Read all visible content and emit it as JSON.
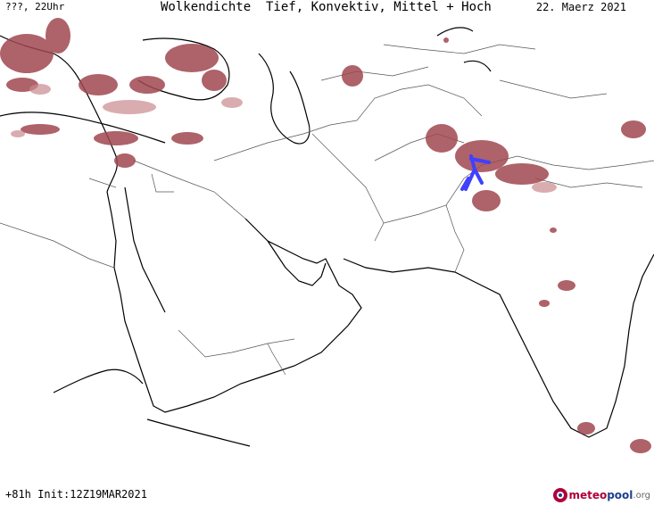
{
  "header": {
    "time_label": "???, 22Uhr",
    "title": "Wolkendichte  Tief, Konvektiv, Mittel + Hoch",
    "date": "22. Maerz 2021"
  },
  "footer": {
    "run_info": "+81h Init:12Z19MAR2021",
    "logo_part1": "meteo",
    "logo_part2": "pool",
    "logo_part3": ".org"
  },
  "colors": {
    "cloud": "#a0474f",
    "cloud_light": "#c98a8f",
    "convective": "#4040ff",
    "coast": "#000000",
    "border": "#555555"
  }
}
